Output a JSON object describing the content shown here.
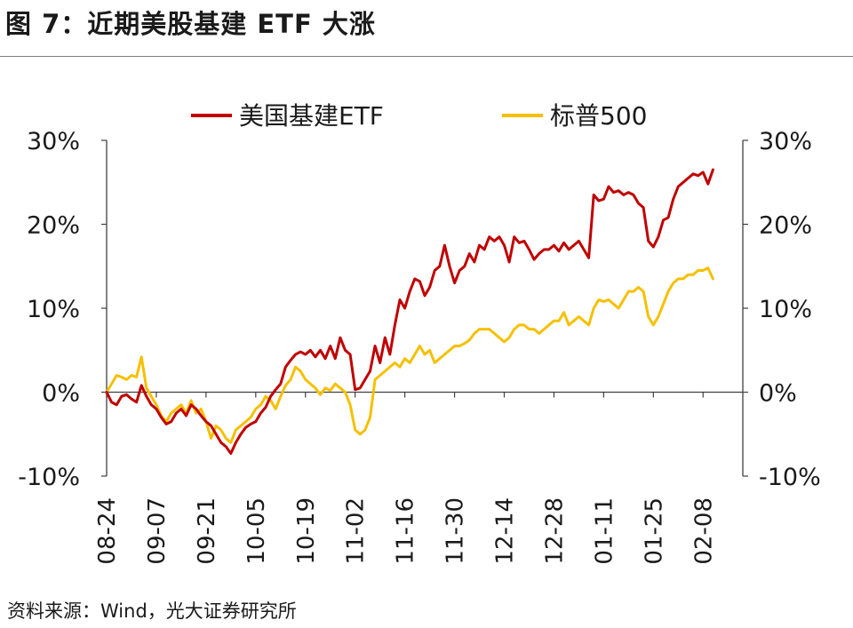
{
  "header": {
    "title": "图 7：近期美股基建 ETF 大涨"
  },
  "footer": {
    "source": "资料来源：Wind，光大证券研究所"
  },
  "chart_data": {
    "type": "line",
    "title": "图 7：近期美股基建 ETF 大涨",
    "xlabel": "",
    "ylabel": "",
    "ylim": [
      -10,
      30
    ],
    "yticks": [
      30,
      20,
      10,
      0,
      -10
    ],
    "ytick_labels": [
      "30%",
      "20%",
      "10%",
      "0%",
      "-10%"
    ],
    "ytick_labels_right": [
      "30%",
      "20%",
      "10%",
      "0%",
      "-10%"
    ],
    "x_tick_labels": [
      "08-24",
      "09-07",
      "09-21",
      "10-05",
      "10-19",
      "11-02",
      "11-16",
      "11-30",
      "12-14",
      "12-28",
      "01-11",
      "01-25",
      "02-08"
    ],
    "x_tick_positions": [
      0,
      10,
      20,
      30,
      40,
      50,
      60,
      70,
      80,
      90,
      100,
      110,
      120
    ],
    "x_range": [
      0,
      128
    ],
    "legend": {
      "placement": "top",
      "entries": [
        "美国基建ETF",
        "标普500"
      ]
    },
    "series": [
      {
        "name": "美国基建ETF",
        "color": "#c00000",
        "points": [
          [
            0,
            0
          ],
          [
            1,
            -1.2
          ],
          [
            2,
            -1.5
          ],
          [
            3,
            -0.5
          ],
          [
            4,
            -0.3
          ],
          [
            5,
            -0.8
          ],
          [
            6,
            -1.2
          ],
          [
            7,
            0.8
          ],
          [
            8,
            -0.5
          ],
          [
            9,
            -1.5
          ],
          [
            10,
            -2.0
          ],
          [
            11,
            -3.0
          ],
          [
            12,
            -3.8
          ],
          [
            13,
            -3.5
          ],
          [
            14,
            -2.5
          ],
          [
            15,
            -2.0
          ],
          [
            16,
            -2.8
          ],
          [
            17,
            -1.5
          ],
          [
            18,
            -2.0
          ],
          [
            19,
            -2.8
          ],
          [
            20,
            -3.5
          ],
          [
            21,
            -4.0
          ],
          [
            22,
            -5.0
          ],
          [
            23,
            -6.0
          ],
          [
            24,
            -6.5
          ],
          [
            25,
            -7.3
          ],
          [
            26,
            -6.0
          ],
          [
            27,
            -5.0
          ],
          [
            28,
            -4.2
          ],
          [
            29,
            -3.8
          ],
          [
            30,
            -3.5
          ],
          [
            31,
            -2.5
          ],
          [
            32,
            -1.8
          ],
          [
            33,
            -0.5
          ],
          [
            34,
            0.3
          ],
          [
            35,
            1.0
          ],
          [
            36,
            3.0
          ],
          [
            37,
            3.8
          ],
          [
            38,
            4.5
          ],
          [
            39,
            4.8
          ],
          [
            40,
            4.5
          ],
          [
            41,
            5.0
          ],
          [
            42,
            4.2
          ],
          [
            43,
            5.0
          ],
          [
            44,
            4.0
          ],
          [
            45,
            5.5
          ],
          [
            46,
            4.0
          ],
          [
            47,
            6.5
          ],
          [
            48,
            5.0
          ],
          [
            49,
            4.5
          ],
          [
            50,
            0.3
          ],
          [
            51,
            0.5
          ],
          [
            52,
            1.5
          ],
          [
            53,
            2.5
          ],
          [
            54,
            5.5
          ],
          [
            55,
            3.5
          ],
          [
            56,
            6.5
          ],
          [
            57,
            4.5
          ],
          [
            58,
            8.0
          ],
          [
            59,
            11.0
          ],
          [
            60,
            10.0
          ],
          [
            61,
            12.0
          ],
          [
            62,
            13.5
          ],
          [
            63,
            13.2
          ],
          [
            64,
            11.5
          ],
          [
            65,
            12.5
          ],
          [
            66,
            14.5
          ],
          [
            67,
            15.0
          ],
          [
            68,
            17.5
          ],
          [
            69,
            15.0
          ],
          [
            70,
            13.0
          ],
          [
            71,
            14.5
          ],
          [
            72,
            15.0
          ],
          [
            73,
            16.5
          ],
          [
            74,
            15.5
          ],
          [
            75,
            17.5
          ],
          [
            76,
            17.0
          ],
          [
            77,
            18.5
          ],
          [
            78,
            18.0
          ],
          [
            79,
            18.5
          ],
          [
            80,
            17.5
          ],
          [
            81,
            15.5
          ],
          [
            82,
            18.5
          ],
          [
            83,
            17.8
          ],
          [
            84,
            18.0
          ],
          [
            85,
            17.0
          ],
          [
            86,
            15.8
          ],
          [
            87,
            16.5
          ],
          [
            88,
            17.0
          ],
          [
            89,
            17.0
          ],
          [
            90,
            17.5
          ],
          [
            91,
            16.8
          ],
          [
            92,
            17.8
          ],
          [
            93,
            17.0
          ],
          [
            94,
            17.5
          ],
          [
            95,
            18.0
          ],
          [
            96,
            17.0
          ],
          [
            97,
            16.0
          ],
          [
            98,
            23.5
          ],
          [
            99,
            22.8
          ],
          [
            100,
            23.0
          ],
          [
            101,
            24.5
          ],
          [
            102,
            23.8
          ],
          [
            103,
            24.0
          ],
          [
            104,
            23.5
          ],
          [
            105,
            23.8
          ],
          [
            106,
            23.5
          ],
          [
            107,
            22.5
          ],
          [
            108,
            22.0
          ],
          [
            109,
            18.0
          ],
          [
            110,
            17.3
          ],
          [
            111,
            18.5
          ],
          [
            112,
            20.5
          ],
          [
            113,
            20.8
          ],
          [
            114,
            23.0
          ],
          [
            115,
            24.5
          ],
          [
            116,
            25.0
          ],
          [
            117,
            25.5
          ],
          [
            118,
            26.0
          ],
          [
            119,
            25.8
          ],
          [
            120,
            26.2
          ],
          [
            121,
            24.8
          ],
          [
            122,
            26.5
          ]
        ]
      },
      {
        "name": "标普500",
        "color": "#f5c000",
        "points": [
          [
            0,
            0
          ],
          [
            1,
            1.0
          ],
          [
            2,
            2.0
          ],
          [
            3,
            1.8
          ],
          [
            4,
            1.5
          ],
          [
            5,
            2.0
          ],
          [
            6,
            1.8
          ],
          [
            7,
            4.2
          ],
          [
            8,
            0.5
          ],
          [
            9,
            -0.5
          ],
          [
            10,
            -1.5
          ],
          [
            11,
            -2.8
          ],
          [
            12,
            -3.5
          ],
          [
            13,
            -2.5
          ],
          [
            14,
            -2.0
          ],
          [
            15,
            -1.5
          ],
          [
            16,
            -2.5
          ],
          [
            17,
            -1.0
          ],
          [
            18,
            -2.5
          ],
          [
            19,
            -2.0
          ],
          [
            20,
            -3.5
          ],
          [
            21,
            -5.5
          ],
          [
            22,
            -4.0
          ],
          [
            23,
            -4.5
          ],
          [
            24,
            -5.5
          ],
          [
            25,
            -6.0
          ],
          [
            26,
            -4.5
          ],
          [
            27,
            -4.0
          ],
          [
            28,
            -3.5
          ],
          [
            29,
            -3.0
          ],
          [
            30,
            -2.0
          ],
          [
            31,
            -1.5
          ],
          [
            32,
            -0.5
          ],
          [
            33,
            -1.0
          ],
          [
            34,
            -2.0
          ],
          [
            35,
            -0.5
          ],
          [
            36,
            0.8
          ],
          [
            37,
            1.5
          ],
          [
            38,
            3.0
          ],
          [
            39,
            2.5
          ],
          [
            40,
            1.5
          ],
          [
            41,
            1.0
          ],
          [
            42,
            0.5
          ],
          [
            43,
            -0.3
          ],
          [
            44,
            0.5
          ],
          [
            45,
            0.2
          ],
          [
            46,
            1.0
          ],
          [
            47,
            0.5
          ],
          [
            48,
            0.0
          ],
          [
            49,
            -1.5
          ],
          [
            50,
            -4.5
          ],
          [
            51,
            -5.0
          ],
          [
            52,
            -4.5
          ],
          [
            53,
            -3.0
          ],
          [
            54,
            1.5
          ],
          [
            55,
            2.0
          ],
          [
            56,
            2.5
          ],
          [
            57,
            3.0
          ],
          [
            58,
            3.5
          ],
          [
            59,
            3.0
          ],
          [
            60,
            4.0
          ],
          [
            61,
            3.5
          ],
          [
            62,
            4.5
          ],
          [
            63,
            5.5
          ],
          [
            64,
            4.5
          ],
          [
            65,
            5.0
          ],
          [
            66,
            3.5
          ],
          [
            67,
            4.0
          ],
          [
            68,
            4.5
          ],
          [
            69,
            5.0
          ],
          [
            70,
            5.5
          ],
          [
            71,
            5.5
          ],
          [
            72,
            5.8
          ],
          [
            73,
            6.2
          ],
          [
            74,
            7.0
          ],
          [
            75,
            7.5
          ],
          [
            76,
            7.5
          ],
          [
            77,
            7.5
          ],
          [
            78,
            7.0
          ],
          [
            79,
            6.5
          ],
          [
            80,
            6.0
          ],
          [
            81,
            6.5
          ],
          [
            82,
            7.5
          ],
          [
            83,
            8.0
          ],
          [
            84,
            8.0
          ],
          [
            85,
            7.5
          ],
          [
            86,
            7.5
          ],
          [
            87,
            7.0
          ],
          [
            88,
            7.5
          ],
          [
            89,
            8.0
          ],
          [
            90,
            8.5
          ],
          [
            91,
            8.5
          ],
          [
            92,
            9.5
          ],
          [
            93,
            8.0
          ],
          [
            94,
            8.5
          ],
          [
            95,
            9.0
          ],
          [
            96,
            8.5
          ],
          [
            97,
            8.0
          ],
          [
            98,
            10.0
          ],
          [
            99,
            11.0
          ],
          [
            100,
            10.8
          ],
          [
            101,
            11.0
          ],
          [
            102,
            10.5
          ],
          [
            103,
            10.0
          ],
          [
            104,
            11.0
          ],
          [
            105,
            12.0
          ],
          [
            106,
            12.0
          ],
          [
            107,
            12.5
          ],
          [
            108,
            12.0
          ],
          [
            109,
            9.0
          ],
          [
            110,
            8.0
          ],
          [
            111,
            9.0
          ],
          [
            112,
            10.5
          ],
          [
            113,
            12.0
          ],
          [
            114,
            13.0
          ],
          [
            115,
            13.5
          ],
          [
            116,
            13.5
          ],
          [
            117,
            14.0
          ],
          [
            118,
            14.0
          ],
          [
            119,
            14.5
          ],
          [
            120,
            14.5
          ],
          [
            121,
            14.8
          ],
          [
            122,
            13.5
          ]
        ]
      }
    ]
  }
}
